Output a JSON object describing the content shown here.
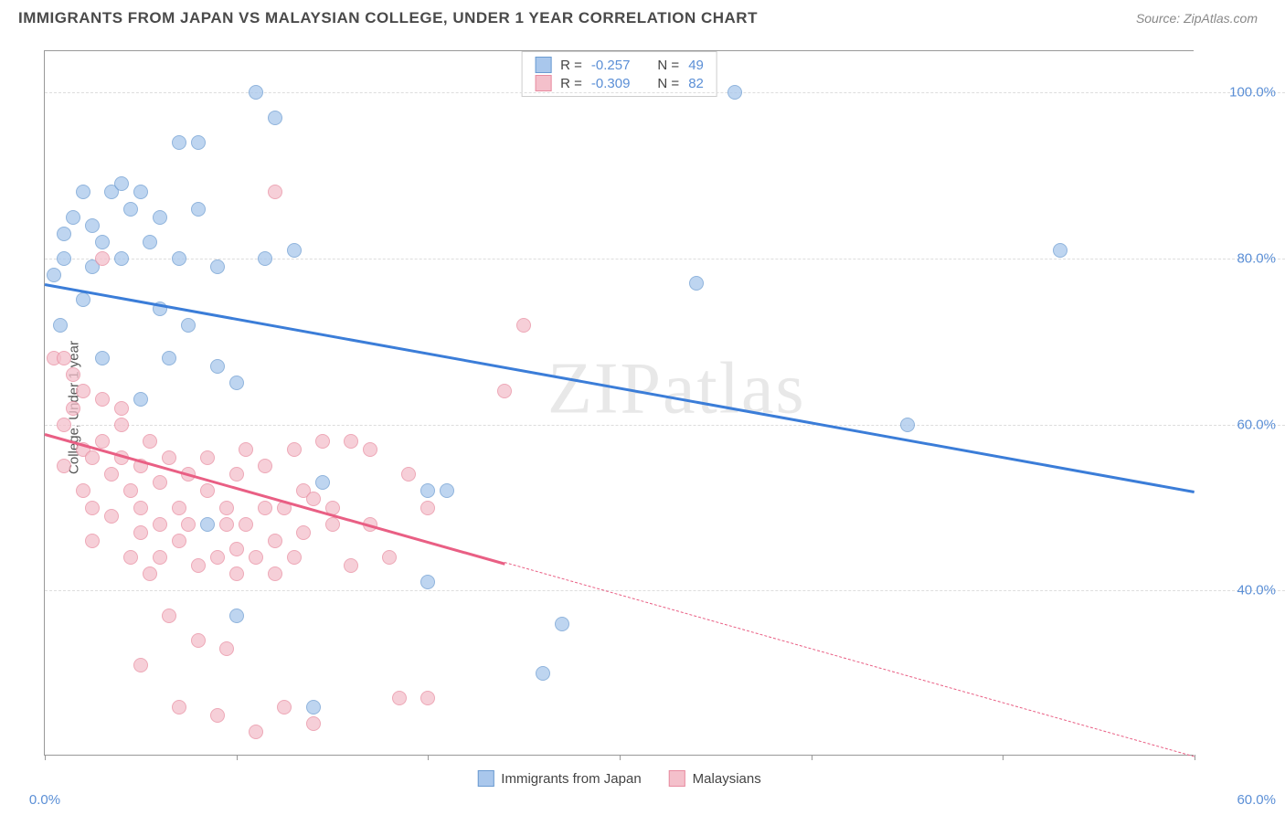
{
  "title": "IMMIGRANTS FROM JAPAN VS MALAYSIAN COLLEGE, UNDER 1 YEAR CORRELATION CHART",
  "source": "Source: ZipAtlas.com",
  "watermark": "ZIPatlas",
  "ylabel": "College, Under 1 year",
  "chart": {
    "type": "scatter",
    "xlim": [
      0,
      60
    ],
    "ylim": [
      20,
      105
    ],
    "xticks": [
      0,
      10,
      20,
      30,
      40,
      50,
      60
    ],
    "xtick_labels": {
      "0": "0.0%",
      "60": "60.0%"
    },
    "yticks": [
      40,
      60,
      80,
      100
    ],
    "ytick_labels": [
      "40.0%",
      "60.0%",
      "80.0%",
      "100.0%"
    ],
    "background_color": "#ffffff",
    "grid_color": "#dddddd",
    "axis_color": "#999999",
    "marker_size": 16,
    "series": [
      {
        "name": "Immigrants from Japan",
        "fill": "#a9c7ec",
        "stroke": "#6b9bd1",
        "line_color": "#3b7dd8",
        "R": "-0.257",
        "N": "49",
        "trend": {
          "x1": 0,
          "y1": 77,
          "x2": 60,
          "y2": 52,
          "solid_until_x": 60
        },
        "points": [
          [
            0.5,
            78
          ],
          [
            0.8,
            72
          ],
          [
            1,
            80
          ],
          [
            1,
            83
          ],
          [
            1.5,
            85
          ],
          [
            2,
            75
          ],
          [
            2,
            88
          ],
          [
            2.5,
            79
          ],
          [
            2.5,
            84
          ],
          [
            3,
            68
          ],
          [
            3,
            82
          ],
          [
            3.5,
            88
          ],
          [
            4,
            80
          ],
          [
            4,
            89
          ],
          [
            4.5,
            86
          ],
          [
            5,
            63
          ],
          [
            5,
            88
          ],
          [
            5.5,
            82
          ],
          [
            6,
            85
          ],
          [
            6,
            74
          ],
          [
            6.5,
            68
          ],
          [
            7,
            94
          ],
          [
            7,
            80
          ],
          [
            7.5,
            72
          ],
          [
            8,
            94
          ],
          [
            8,
            86
          ],
          [
            8.5,
            48
          ],
          [
            9,
            67
          ],
          [
            9,
            79
          ],
          [
            10,
            65
          ],
          [
            10,
            37
          ],
          [
            11,
            100
          ],
          [
            11.5,
            80
          ],
          [
            12,
            97
          ],
          [
            13,
            81
          ],
          [
            14.5,
            53
          ],
          [
            14,
            26
          ],
          [
            20,
            52
          ],
          [
            20,
            41
          ],
          [
            21,
            52
          ],
          [
            26,
            30
          ],
          [
            27,
            36
          ],
          [
            34,
            77
          ],
          [
            36,
            100
          ],
          [
            45,
            60
          ],
          [
            53,
            81
          ]
        ]
      },
      {
        "name": "Malaysians",
        "fill": "#f4c0cb",
        "stroke": "#e88ca0",
        "line_color": "#e95f84",
        "R": "-0.309",
        "N": "82",
        "trend": {
          "x1": 0,
          "y1": 59,
          "x2": 60,
          "y2": 20,
          "solid_until_x": 24
        },
        "points": [
          [
            0.5,
            68
          ],
          [
            1,
            68
          ],
          [
            1,
            60
          ],
          [
            1,
            55
          ],
          [
            1.5,
            66
          ],
          [
            1.5,
            62
          ],
          [
            2,
            64
          ],
          [
            2,
            57
          ],
          [
            2,
            52
          ],
          [
            2.5,
            50
          ],
          [
            2.5,
            56
          ],
          [
            2.5,
            46
          ],
          [
            3,
            58
          ],
          [
            3,
            63
          ],
          [
            3,
            80
          ],
          [
            3.5,
            54
          ],
          [
            3.5,
            49
          ],
          [
            4,
            56
          ],
          [
            4,
            60
          ],
          [
            4,
            62
          ],
          [
            4.5,
            52
          ],
          [
            4.5,
            44
          ],
          [
            5,
            55
          ],
          [
            5,
            50
          ],
          [
            5,
            47
          ],
          [
            5,
            31
          ],
          [
            5.5,
            58
          ],
          [
            5.5,
            42
          ],
          [
            6,
            53
          ],
          [
            6,
            48
          ],
          [
            6,
            44
          ],
          [
            6.5,
            56
          ],
          [
            6.5,
            37
          ],
          [
            7,
            50
          ],
          [
            7,
            46
          ],
          [
            7,
            26
          ],
          [
            7.5,
            54
          ],
          [
            7.5,
            48
          ],
          [
            8,
            43
          ],
          [
            8,
            34
          ],
          [
            8.5,
            52
          ],
          [
            8.5,
            56
          ],
          [
            9,
            25
          ],
          [
            9,
            44
          ],
          [
            9.5,
            48
          ],
          [
            9.5,
            50
          ],
          [
            9.5,
            33
          ],
          [
            10,
            54
          ],
          [
            10,
            45
          ],
          [
            10,
            42
          ],
          [
            10.5,
            48
          ],
          [
            10.5,
            57
          ],
          [
            11,
            44
          ],
          [
            11,
            23
          ],
          [
            11.5,
            50
          ],
          [
            11.5,
            55
          ],
          [
            12,
            42
          ],
          [
            12,
            46
          ],
          [
            12,
            88
          ],
          [
            12.5,
            50
          ],
          [
            12.5,
            26
          ],
          [
            13,
            44
          ],
          [
            13,
            57
          ],
          [
            13.5,
            47
          ],
          [
            13.5,
            52
          ],
          [
            14,
            24
          ],
          [
            14,
            51
          ],
          [
            14.5,
            58
          ],
          [
            15,
            48
          ],
          [
            15,
            50
          ],
          [
            16,
            43
          ],
          [
            16,
            58
          ],
          [
            17,
            48
          ],
          [
            17,
            57
          ],
          [
            18,
            44
          ],
          [
            18.5,
            27
          ],
          [
            19,
            54
          ],
          [
            20,
            27
          ],
          [
            20,
            50
          ],
          [
            25,
            72
          ],
          [
            24,
            64
          ]
        ]
      }
    ]
  },
  "legend_bottom": [
    {
      "label": "Immigrants from Japan",
      "fill": "#a9c7ec",
      "stroke": "#6b9bd1"
    },
    {
      "label": "Malaysians",
      "fill": "#f4c0cb",
      "stroke": "#e88ca0"
    }
  ]
}
